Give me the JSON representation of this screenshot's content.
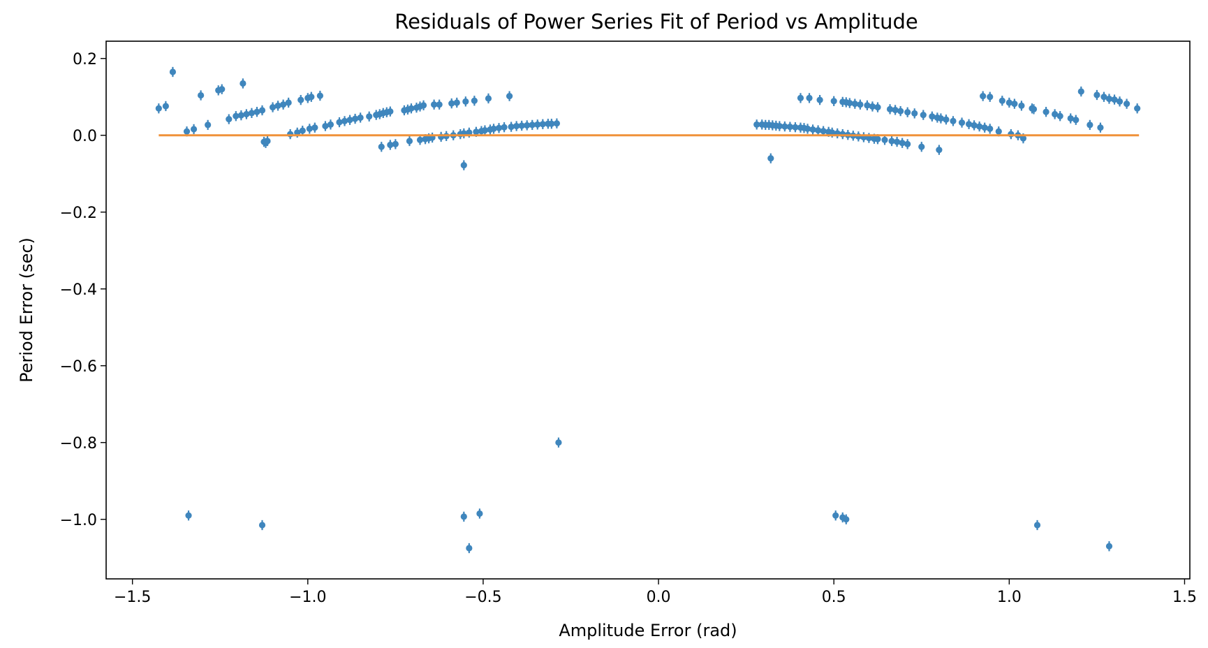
{
  "chart_data": {
    "type": "scatter",
    "title": "Residuals of Power Series Fit of Period vs Amplitude",
    "xlabel": "Amplitude Error (rad)",
    "ylabel": "Period Error (sec)",
    "xlim": [
      -1.575,
      1.515
    ],
    "ylim": [
      -1.155,
      0.245
    ],
    "grid": false,
    "x_ticks": [
      {
        "value": -1.5,
        "label": "−1.5"
      },
      {
        "value": -1.0,
        "label": "−1.0"
      },
      {
        "value": -0.5,
        "label": "−0.5"
      },
      {
        "value": 0.0,
        "label": "0.0"
      },
      {
        "value": 0.5,
        "label": "0.5"
      },
      {
        "value": 1.0,
        "label": "1.0"
      },
      {
        "value": 1.5,
        "label": "1.5"
      }
    ],
    "y_ticks": [
      {
        "value": 0.2,
        "label": "0.2"
      },
      {
        "value": 0.0,
        "label": "0.0"
      },
      {
        "value": -0.2,
        "label": "−0.2"
      },
      {
        "value": -0.4,
        "label": "−0.4"
      },
      {
        "value": -0.6,
        "label": "−0.6"
      },
      {
        "value": -0.8,
        "label": "−0.8"
      },
      {
        "value": -1.0,
        "label": "−1.0"
      }
    ],
    "colors": {
      "points": "#3f86bd",
      "fit_line": "#f0923a"
    },
    "series": [
      {
        "kind": "errorbar-points",
        "yerr": 0.013,
        "points": [
          [
            -1.425,
            0.07
          ],
          [
            -1.405,
            0.076
          ],
          [
            -1.385,
            0.165
          ],
          [
            -1.345,
            0.01
          ],
          [
            -1.325,
            0.016
          ],
          [
            -1.305,
            0.104
          ],
          [
            -1.285,
            0.027
          ],
          [
            -1.255,
            0.117
          ],
          [
            -1.245,
            0.12
          ],
          [
            -1.225,
            0.042
          ],
          [
            -1.205,
            0.05
          ],
          [
            -1.19,
            0.052
          ],
          [
            -1.185,
            0.135
          ],
          [
            -1.175,
            0.055
          ],
          [
            -1.16,
            0.058
          ],
          [
            -1.145,
            0.061
          ],
          [
            -1.13,
            0.065
          ],
          [
            -1.125,
            -0.017
          ],
          [
            -1.12,
            -0.02
          ],
          [
            -1.115,
            -0.015
          ],
          [
            -1.1,
            0.073
          ],
          [
            -1.085,
            0.077
          ],
          [
            -1.07,
            0.08
          ],
          [
            -1.055,
            0.085
          ],
          [
            -1.05,
            0.003
          ],
          [
            -1.03,
            0.007
          ],
          [
            -1.02,
            0.092
          ],
          [
            -1.015,
            0.012
          ],
          [
            -1.0,
            0.097
          ],
          [
            -0.995,
            0.017
          ],
          [
            -0.99,
            0.1
          ],
          [
            -0.98,
            0.02
          ],
          [
            -0.965,
            0.103
          ],
          [
            -0.95,
            0.024
          ],
          [
            -0.935,
            0.028
          ],
          [
            -0.91,
            0.034
          ],
          [
            -0.895,
            0.037
          ],
          [
            -0.88,
            0.04
          ],
          [
            -0.865,
            0.043
          ],
          [
            -0.85,
            0.046
          ],
          [
            -0.825,
            0.049
          ],
          [
            -0.805,
            0.053
          ],
          [
            -0.795,
            0.055
          ],
          [
            -0.785,
            0.058
          ],
          [
            -0.775,
            0.06
          ],
          [
            -0.765,
            0.062
          ],
          [
            -0.79,
            -0.03
          ],
          [
            -0.765,
            -0.025
          ],
          [
            -0.75,
            -0.023
          ],
          [
            -0.725,
            0.065
          ],
          [
            -0.715,
            0.067
          ],
          [
            -0.705,
            0.07
          ],
          [
            -0.69,
            0.072
          ],
          [
            -0.68,
            0.075
          ],
          [
            -0.67,
            0.078
          ],
          [
            -0.71,
            -0.015
          ],
          [
            -0.68,
            -0.012
          ],
          [
            -0.665,
            -0.01
          ],
          [
            -0.655,
            -0.008
          ],
          [
            -0.645,
            -0.006
          ],
          [
            -0.64,
            0.08
          ],
          [
            -0.625,
            0.08
          ],
          [
            -0.62,
            -0.004
          ],
          [
            -0.605,
            -0.002
          ],
          [
            -0.59,
            0.083
          ],
          [
            -0.585,
            0.0
          ],
          [
            -0.575,
            0.085
          ],
          [
            -0.565,
            0.003
          ],
          [
            -0.555,
            0.005
          ],
          [
            -0.55,
            0.088
          ],
          [
            -0.555,
            -0.078
          ],
          [
            -0.54,
            0.007
          ],
          [
            -0.525,
            0.09
          ],
          [
            -0.52,
            0.009
          ],
          [
            -0.505,
            0.011
          ],
          [
            -0.495,
            0.013
          ],
          [
            -0.485,
            0.096
          ],
          [
            -0.48,
            0.015
          ],
          [
            -0.47,
            0.017
          ],
          [
            -0.455,
            0.019
          ],
          [
            -0.44,
            0.021
          ],
          [
            -0.425,
            0.102
          ],
          [
            -0.42,
            0.022
          ],
          [
            -0.405,
            0.024
          ],
          [
            -0.39,
            0.025
          ],
          [
            -0.375,
            0.026
          ],
          [
            -0.36,
            0.027
          ],
          [
            -0.345,
            0.028
          ],
          [
            -0.33,
            0.029
          ],
          [
            -0.315,
            0.03
          ],
          [
            -0.305,
            0.03
          ],
          [
            -0.29,
            0.031
          ],
          [
            -1.34,
            -0.99
          ],
          [
            -1.13,
            -1.015
          ],
          [
            -0.555,
            -0.993
          ],
          [
            -0.54,
            -1.075
          ],
          [
            -0.51,
            -0.985
          ],
          [
            -0.285,
            -0.8
          ],
          [
            0.28,
            0.028
          ],
          [
            0.295,
            0.028
          ],
          [
            0.305,
            0.027
          ],
          [
            0.315,
            0.027
          ],
          [
            0.325,
            0.026
          ],
          [
            0.335,
            0.025
          ],
          [
            0.345,
            0.024
          ],
          [
            0.32,
            -0.06
          ],
          [
            0.36,
            0.023
          ],
          [
            0.375,
            0.022
          ],
          [
            0.39,
            0.021
          ],
          [
            0.405,
            0.02
          ],
          [
            0.415,
            0.019
          ],
          [
            0.425,
            0.017
          ],
          [
            0.44,
            0.015
          ],
          [
            0.455,
            0.013
          ],
          [
            0.47,
            0.011
          ],
          [
            0.485,
            0.009
          ],
          [
            0.495,
            0.007
          ],
          [
            0.51,
            0.005
          ],
          [
            0.525,
            0.003
          ],
          [
            0.54,
            0.001
          ],
          [
            0.555,
            -0.001
          ],
          [
            0.57,
            -0.003
          ],
          [
            0.585,
            -0.005
          ],
          [
            0.6,
            -0.007
          ],
          [
            0.615,
            -0.009
          ],
          [
            0.625,
            -0.01
          ],
          [
            0.645,
            -0.012
          ],
          [
            0.665,
            -0.015
          ],
          [
            0.68,
            -0.017
          ],
          [
            0.695,
            -0.02
          ],
          [
            0.71,
            -0.023
          ],
          [
            0.75,
            -0.03
          ],
          [
            0.8,
            -0.038
          ],
          [
            0.405,
            0.097
          ],
          [
            0.43,
            0.097
          ],
          [
            0.46,
            0.092
          ],
          [
            0.5,
            0.089
          ],
          [
            0.525,
            0.087
          ],
          [
            0.535,
            0.086
          ],
          [
            0.545,
            0.084
          ],
          [
            0.56,
            0.082
          ],
          [
            0.575,
            0.08
          ],
          [
            0.595,
            0.078
          ],
          [
            0.61,
            0.075
          ],
          [
            0.625,
            0.073
          ],
          [
            0.66,
            0.068
          ],
          [
            0.675,
            0.066
          ],
          [
            0.69,
            0.063
          ],
          [
            0.71,
            0.06
          ],
          [
            0.73,
            0.057
          ],
          [
            0.755,
            0.053
          ],
          [
            0.78,
            0.049
          ],
          [
            0.795,
            0.046
          ],
          [
            0.805,
            0.044
          ],
          [
            0.82,
            0.041
          ],
          [
            0.84,
            0.037
          ],
          [
            0.865,
            0.033
          ],
          [
            0.885,
            0.029
          ],
          [
            0.9,
            0.026
          ],
          [
            0.915,
            0.023
          ],
          [
            0.93,
            0.02
          ],
          [
            0.945,
            0.017
          ],
          [
            0.97,
            0.01
          ],
          [
            0.925,
            0.102
          ],
          [
            0.945,
            0.1
          ],
          [
            0.98,
            0.09
          ],
          [
            1.0,
            0.085
          ],
          [
            1.015,
            0.082
          ],
          [
            1.035,
            0.077
          ],
          [
            1.005,
            0.003
          ],
          [
            1.025,
            0.0
          ],
          [
            1.04,
            -0.008
          ],
          [
            1.065,
            0.07
          ],
          [
            1.07,
            0.068
          ],
          [
            1.105,
            0.061
          ],
          [
            1.13,
            0.055
          ],
          [
            1.145,
            0.05
          ],
          [
            1.175,
            0.044
          ],
          [
            1.19,
            0.04
          ],
          [
            1.205,
            0.114
          ],
          [
            1.23,
            0.027
          ],
          [
            1.26,
            0.02
          ],
          [
            1.25,
            0.105
          ],
          [
            1.27,
            0.1
          ],
          [
            1.285,
            0.095
          ],
          [
            1.3,
            0.093
          ],
          [
            1.315,
            0.088
          ],
          [
            1.335,
            0.082
          ],
          [
            1.365,
            0.07
          ],
          [
            0.505,
            -0.99
          ],
          [
            0.525,
            -0.995
          ],
          [
            0.535,
            -1.0
          ],
          [
            1.08,
            -1.015
          ],
          [
            1.285,
            -1.07
          ]
        ]
      },
      {
        "kind": "fit-line",
        "x": [
          -1.425,
          1.37
        ],
        "y": [
          0.0,
          0.0
        ]
      }
    ]
  }
}
